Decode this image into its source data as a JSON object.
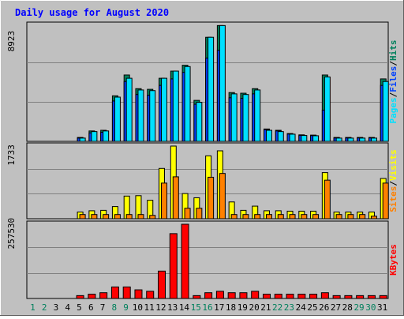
{
  "colors": {
    "background": "#c0c0c0",
    "title": "#0000ff",
    "hits": "#00805c",
    "files": "#0040ff",
    "pages": "#00e0ff",
    "visits": "#ffff00",
    "sites": "#ff8000",
    "kbytes": "#ff0000",
    "weekend_label": "#00805c",
    "weekday_label": "#000000"
  },
  "chart_data": {
    "type": "bar",
    "title": "Daily usage for August 2020",
    "categories": [
      "1",
      "2",
      "3",
      "4",
      "5",
      "6",
      "7",
      "8",
      "9",
      "10",
      "11",
      "12",
      "13",
      "14",
      "15",
      "16",
      "17",
      "18",
      "19",
      "20",
      "21",
      "22",
      "23",
      "24",
      "25",
      "26",
      "27",
      "28",
      "29",
      "30",
      "31"
    ],
    "weekend_days": [
      "1",
      "2",
      "8",
      "9",
      "15",
      "16",
      "22",
      "23",
      "29",
      "30"
    ],
    "panels": [
      {
        "name": "hits-files-pages",
        "ymax_label": "8923",
        "ymax": 8923,
        "legend": [
          {
            "text": "Pages",
            "color": "#00e0ff"
          },
          {
            "text": "/",
            "color": "#000000"
          },
          {
            "text": "Files",
            "color": "#0040ff"
          },
          {
            "text": "/",
            "color": "#000000"
          },
          {
            "text": "Hits",
            "color": "#00805c"
          }
        ],
        "series": [
          {
            "name": "Hits",
            "color": "#00805c",
            "values": [
              0,
              0,
              0,
              0,
              300,
              800,
              850,
              3500,
              5100,
              4050,
              4000,
              4850,
              5400,
              5850,
              3150,
              8000,
              8900,
              3750,
              3700,
              4050,
              950,
              850,
              600,
              500,
              480,
              5100,
              300,
              300,
              300,
              300,
              4800
            ]
          },
          {
            "name": "Files",
            "color": "#0040ff",
            "values": [
              0,
              0,
              0,
              0,
              250,
              650,
              700,
              3100,
              4600,
              3600,
              3550,
              4300,
              4800,
              5300,
              2850,
              6400,
              7000,
              3350,
              3300,
              3650,
              900,
              800,
              560,
              460,
              440,
              2400,
              260,
              260,
              260,
              260,
              4300
            ]
          },
          {
            "name": "Pages",
            "color": "#00e0ff",
            "values": [
              0,
              0,
              0,
              0,
              250,
              750,
              800,
              3400,
              4850,
              3950,
              3900,
              4850,
              5400,
              5750,
              3000,
              8000,
              8900,
              3650,
              3600,
              3950,
              850,
              750,
              550,
              450,
              430,
              4950,
              250,
              250,
              250,
              250,
              4600
            ]
          }
        ]
      },
      {
        "name": "visits-sites",
        "ymax_label": "1733",
        "ymax": 1733,
        "legend": [
          {
            "text": "Sites",
            "color": "#ff8000"
          },
          {
            "text": "/",
            "color": "#000000"
          },
          {
            "text": "Visits",
            "color": "#ffff00"
          }
        ],
        "series": [
          {
            "name": "Visits",
            "color": "#ffff00",
            "values": [
              0,
              0,
              0,
              0,
              160,
              190,
              200,
              290,
              540,
              550,
              440,
              1200,
              1733,
              600,
              500,
              1500,
              1620,
              400,
              200,
              300,
              190,
              190,
              180,
              180,
              180,
              1100,
              160,
              160,
              160,
              160,
              960
            ]
          },
          {
            "name": "Sites",
            "color": "#ff8000",
            "values": [
              0,
              0,
              0,
              0,
              100,
              100,
              100,
              100,
              100,
              100,
              80,
              850,
              1000,
              250,
              250,
              990,
              1080,
              100,
              100,
              100,
              100,
              100,
              100,
              100,
              100,
              920,
              100,
              100,
              100,
              60,
              850
            ]
          }
        ]
      },
      {
        "name": "kbytes",
        "ymax_label": "257530",
        "ymax": 257530,
        "legend": [
          {
            "text": "KBytes",
            "color": "#ff0000"
          }
        ],
        "series": [
          {
            "name": "KBytes",
            "color": "#ff0000",
            "values": [
              0,
              0,
              0,
              0,
              10000,
              15000,
              20000,
              40000,
              40000,
              30000,
              25000,
              95000,
              225000,
              257530,
              10000,
              20000,
              25000,
              20000,
              20000,
              25000,
              15000,
              15000,
              15000,
              15000,
              15000,
              20000,
              10000,
              10000,
              10000,
              10000,
              10000
            ]
          }
        ]
      }
    ]
  }
}
